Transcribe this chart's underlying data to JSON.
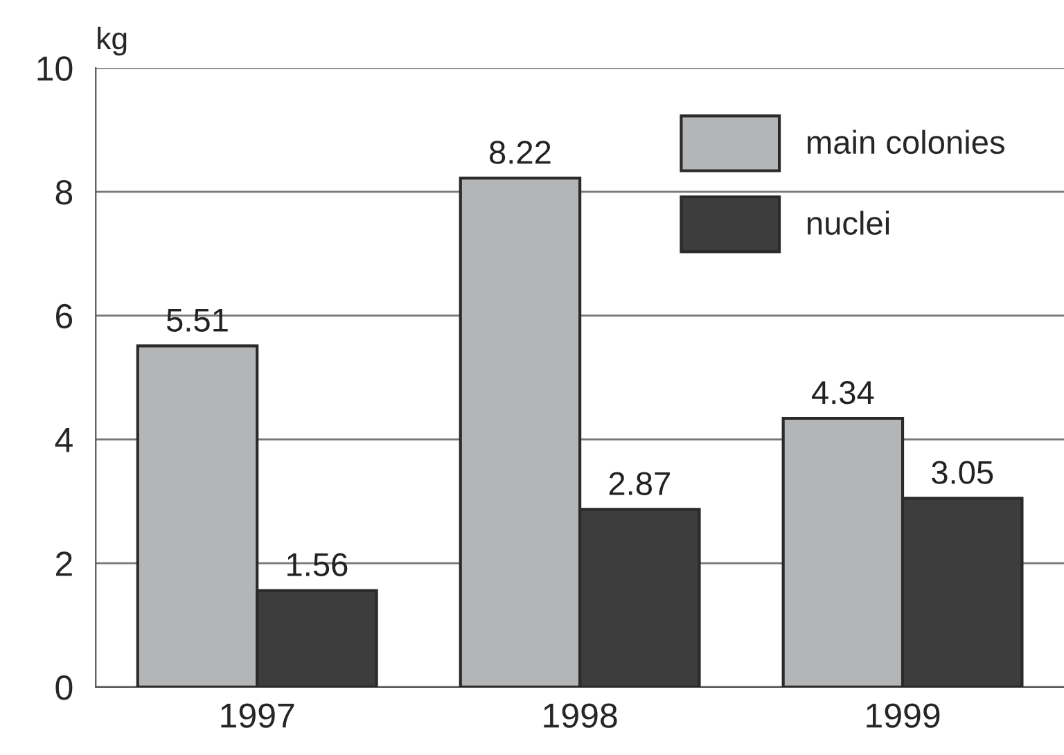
{
  "chart_data": {
    "type": "bar",
    "ylabel": "kg",
    "categories": [
      "1997",
      "1998",
      "1999"
    ],
    "series": [
      {
        "name": "main colonies",
        "color": "#b4b5b7",
        "values": [
          5.51,
          8.22,
          4.34
        ]
      },
      {
        "name": "nuclei",
        "color": "#3d3d3d",
        "values": [
          1.56,
          2.87,
          3.05
        ]
      }
    ],
    "ylim": [
      0,
      10
    ],
    "yticks": [
      0,
      2,
      4,
      6,
      8,
      10
    ],
    "grid": "y",
    "legend": "top right",
    "data_labels": true
  }
}
